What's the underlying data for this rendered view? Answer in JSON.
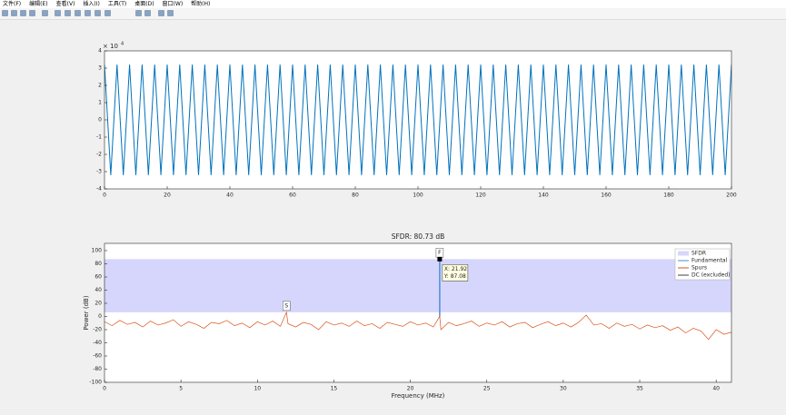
{
  "menu": [
    "文件(F)",
    "编辑(E)",
    "查看(V)",
    "插入(I)",
    "工具(T)",
    "桌面(D)",
    "窗口(W)",
    "帮助(H)"
  ],
  "chart_data": [
    {
      "type": "line",
      "exponent_label": {
        "base": "× 10",
        "exponent": "4"
      },
      "x": [
        0,
        2,
        4,
        6,
        8,
        10,
        12,
        14,
        16,
        18,
        20,
        22,
        24,
        26,
        28,
        30,
        32,
        34,
        36,
        38,
        40,
        42,
        44,
        46,
        48,
        50,
        52,
        54,
        56,
        58,
        60,
        62,
        64,
        66,
        68,
        70,
        72,
        74,
        76,
        78,
        80,
        82,
        84,
        86,
        88,
        90,
        92,
        94,
        96,
        98,
        100,
        102,
        104,
        106,
        108,
        110,
        112,
        114,
        116,
        118,
        120,
        122,
        124,
        126,
        128,
        130,
        132,
        134,
        136,
        138,
        140,
        142,
        144,
        146,
        148,
        150,
        152,
        154,
        156,
        158,
        160,
        162,
        164,
        166,
        168,
        170,
        172,
        174,
        176,
        178,
        180,
        182,
        184,
        186,
        188,
        190,
        192,
        194,
        196,
        198,
        200
      ],
      "series": [
        {
          "color": "#0072bd",
          "values": [
            3.2,
            -3.2,
            3.2,
            -3.2,
            3.2,
            -3.2,
            3.2,
            -3.2,
            3.2,
            -3.2,
            3.2,
            -3.2,
            3.2,
            -3.2,
            3.2,
            -3.2,
            3.2,
            -3.2,
            3.2,
            -3.2,
            3.2,
            -3.2,
            3.2,
            -3.2,
            3.2,
            -3.2,
            3.2,
            -3.2,
            3.2,
            -3.2,
            3.2,
            -3.2,
            3.2,
            -3.2,
            3.2,
            -3.2,
            3.2,
            -3.2,
            3.2,
            -3.2,
            3.2,
            -3.2,
            3.2,
            -3.2,
            3.2,
            -3.2,
            3.2,
            -3.2,
            3.2,
            -3.2,
            3.2,
            -3.2,
            3.2,
            -3.2,
            3.2,
            -3.2,
            3.2,
            -3.2,
            3.2,
            -3.2,
            3.2,
            -3.2,
            3.2,
            -3.2,
            3.2,
            -3.2,
            3.2,
            -3.2,
            3.2,
            -3.2,
            3.2,
            -3.2,
            3.2,
            -3.2,
            3.2,
            -3.2,
            3.2,
            -3.2,
            3.2,
            -3.2,
            3.2,
            -3.2,
            3.2,
            -3.2,
            3.2,
            -3.2,
            3.2,
            -3.2,
            3.2,
            -3.2,
            3.2,
            -3.2,
            3.2,
            -3.2,
            3.2,
            -3.2,
            3.2,
            -3.2,
            3.2,
            -3.2,
            3.2
          ]
        }
      ],
      "xlim": [
        0,
        200
      ],
      "xticks": [
        0,
        20,
        40,
        60,
        80,
        100,
        120,
        140,
        160,
        180,
        200
      ],
      "ylim": [
        -4,
        4
      ],
      "yticks": [
        -4,
        -3,
        -2,
        -1,
        0,
        1,
        2,
        3,
        4
      ]
    },
    {
      "type": "spectrum",
      "title": "SFDR:  80.73 dB",
      "xlabel": "Frequency (MHz)",
      "ylabel": "Power (dB)",
      "xlim": [
        0,
        41
      ],
      "xticks": [
        0,
        5,
        10,
        15,
        20,
        25,
        30,
        35,
        40
      ],
      "ylim": [
        -100,
        111
      ],
      "yticks": [
        -100,
        -80,
        -60,
        -40,
        -20,
        0,
        20,
        40,
        60,
        80,
        100
      ],
      "legend": "northeast",
      "series": [
        {
          "name": "SFDR",
          "kind": "band",
          "color": "#d6d6fc",
          "values": [
            6.35,
            87.08
          ]
        },
        {
          "name": "Fundamental",
          "kind": "stem",
          "color": "#4d8fd6",
          "x": [
            21.92
          ],
          "values": [
            87.08
          ]
        },
        {
          "name": "Spurs",
          "kind": "line",
          "color": "#d95319",
          "x": [
            0,
            0.5,
            1,
            1.5,
            2,
            2.5,
            3,
            3.5,
            4,
            4.5,
            5,
            5.5,
            6,
            6.5,
            7,
            7.5,
            8,
            8.5,
            9,
            9.5,
            10,
            10.5,
            11,
            11.5,
            11.9,
            12,
            12.5,
            13,
            13.5,
            14,
            14.5,
            15,
            15.5,
            16,
            16.5,
            17,
            17.5,
            18,
            18.5,
            19,
            19.5,
            20,
            20.5,
            21,
            21.5,
            21.92,
            22,
            22.5,
            23,
            23.5,
            24,
            24.5,
            25,
            25.5,
            26,
            26.5,
            27,
            27.5,
            28,
            28.5,
            29,
            29.5,
            30,
            30.5,
            31,
            31.5,
            32,
            32.5,
            33,
            33.5,
            34,
            34.5,
            35,
            35.5,
            36,
            36.5,
            37,
            37.5,
            38,
            38.5,
            39,
            39.5,
            40,
            40.5,
            41
          ],
          "values": [
            -8,
            -14,
            -6,
            -12,
            -9,
            -16,
            -7,
            -13,
            -10,
            -5,
            -15,
            -8,
            -12,
            -18,
            -9,
            -11,
            -6,
            -14,
            -10,
            -17,
            -8,
            -13,
            -7,
            -15,
            6.35,
            -11,
            -16,
            -9,
            -12,
            -20,
            -8,
            -13,
            -10,
            -15,
            -7,
            -14,
            -11,
            -18,
            -9,
            -12,
            -15,
            -8,
            -13,
            -10,
            -16,
            0,
            -20,
            -9,
            -14,
            -11,
            -7,
            -15,
            -10,
            -13,
            -8,
            -16,
            -11,
            -9,
            -17,
            -12,
            -8,
            -14,
            -10,
            -16,
            -9,
            2,
            -13,
            -11,
            -18,
            -10,
            -15,
            -12,
            -19,
            -13,
            -17,
            -14,
            -21,
            -16,
            -25,
            -18,
            -22,
            -35,
            -20,
            -27,
            -24
          ]
        },
        {
          "name": "DC (excluded)",
          "kind": "line",
          "color": "#404040",
          "x": [],
          "values": []
        }
      ],
      "markers": [
        {
          "text": "F",
          "x": 21.92,
          "y": 87.08
        },
        {
          "text": "S",
          "x": 11.9,
          "y": 6.35
        }
      ],
      "datatip": {
        "x": 21.92,
        "y": 87.08,
        "lines": [
          "X: 21.92",
          "Y: 87.08"
        ]
      }
    }
  ]
}
